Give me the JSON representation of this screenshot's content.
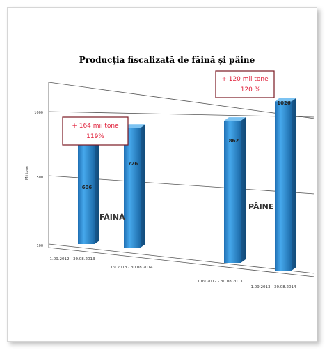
{
  "chart_data": {
    "type": "bar",
    "title": "Producția fiscalizată de făină și pâine",
    "ylabel": "Mii tone",
    "ylim": [
      0,
      1200
    ],
    "yticks": [
      "1000",
      "500",
      "100"
    ],
    "grid": true,
    "categories": [
      "1.09.2012 - 30.08.2013",
      "1.09.2013 - 30.08.2014",
      "1.09.2012 - 30.08.2013",
      "1.09.2013 - 30.08.2014"
    ],
    "values": [
      606,
      726,
      862,
      1026
    ],
    "value_labels": [
      "606",
      "726",
      "862",
      "1026"
    ],
    "groups": [
      {
        "name": "FĂINĂ",
        "indices": [
          0,
          1
        ]
      },
      {
        "name": "PÂINE",
        "indices": [
          2,
          3
        ]
      }
    ],
    "annotations": [
      {
        "line1": "+ 164 mii tone",
        "line2": "119%"
      },
      {
        "line1": "+ 120 mii tone",
        "line2": "120 %"
      }
    ],
    "bar_color": "#2e8fd6",
    "annotation_color": "#e0203a"
  }
}
